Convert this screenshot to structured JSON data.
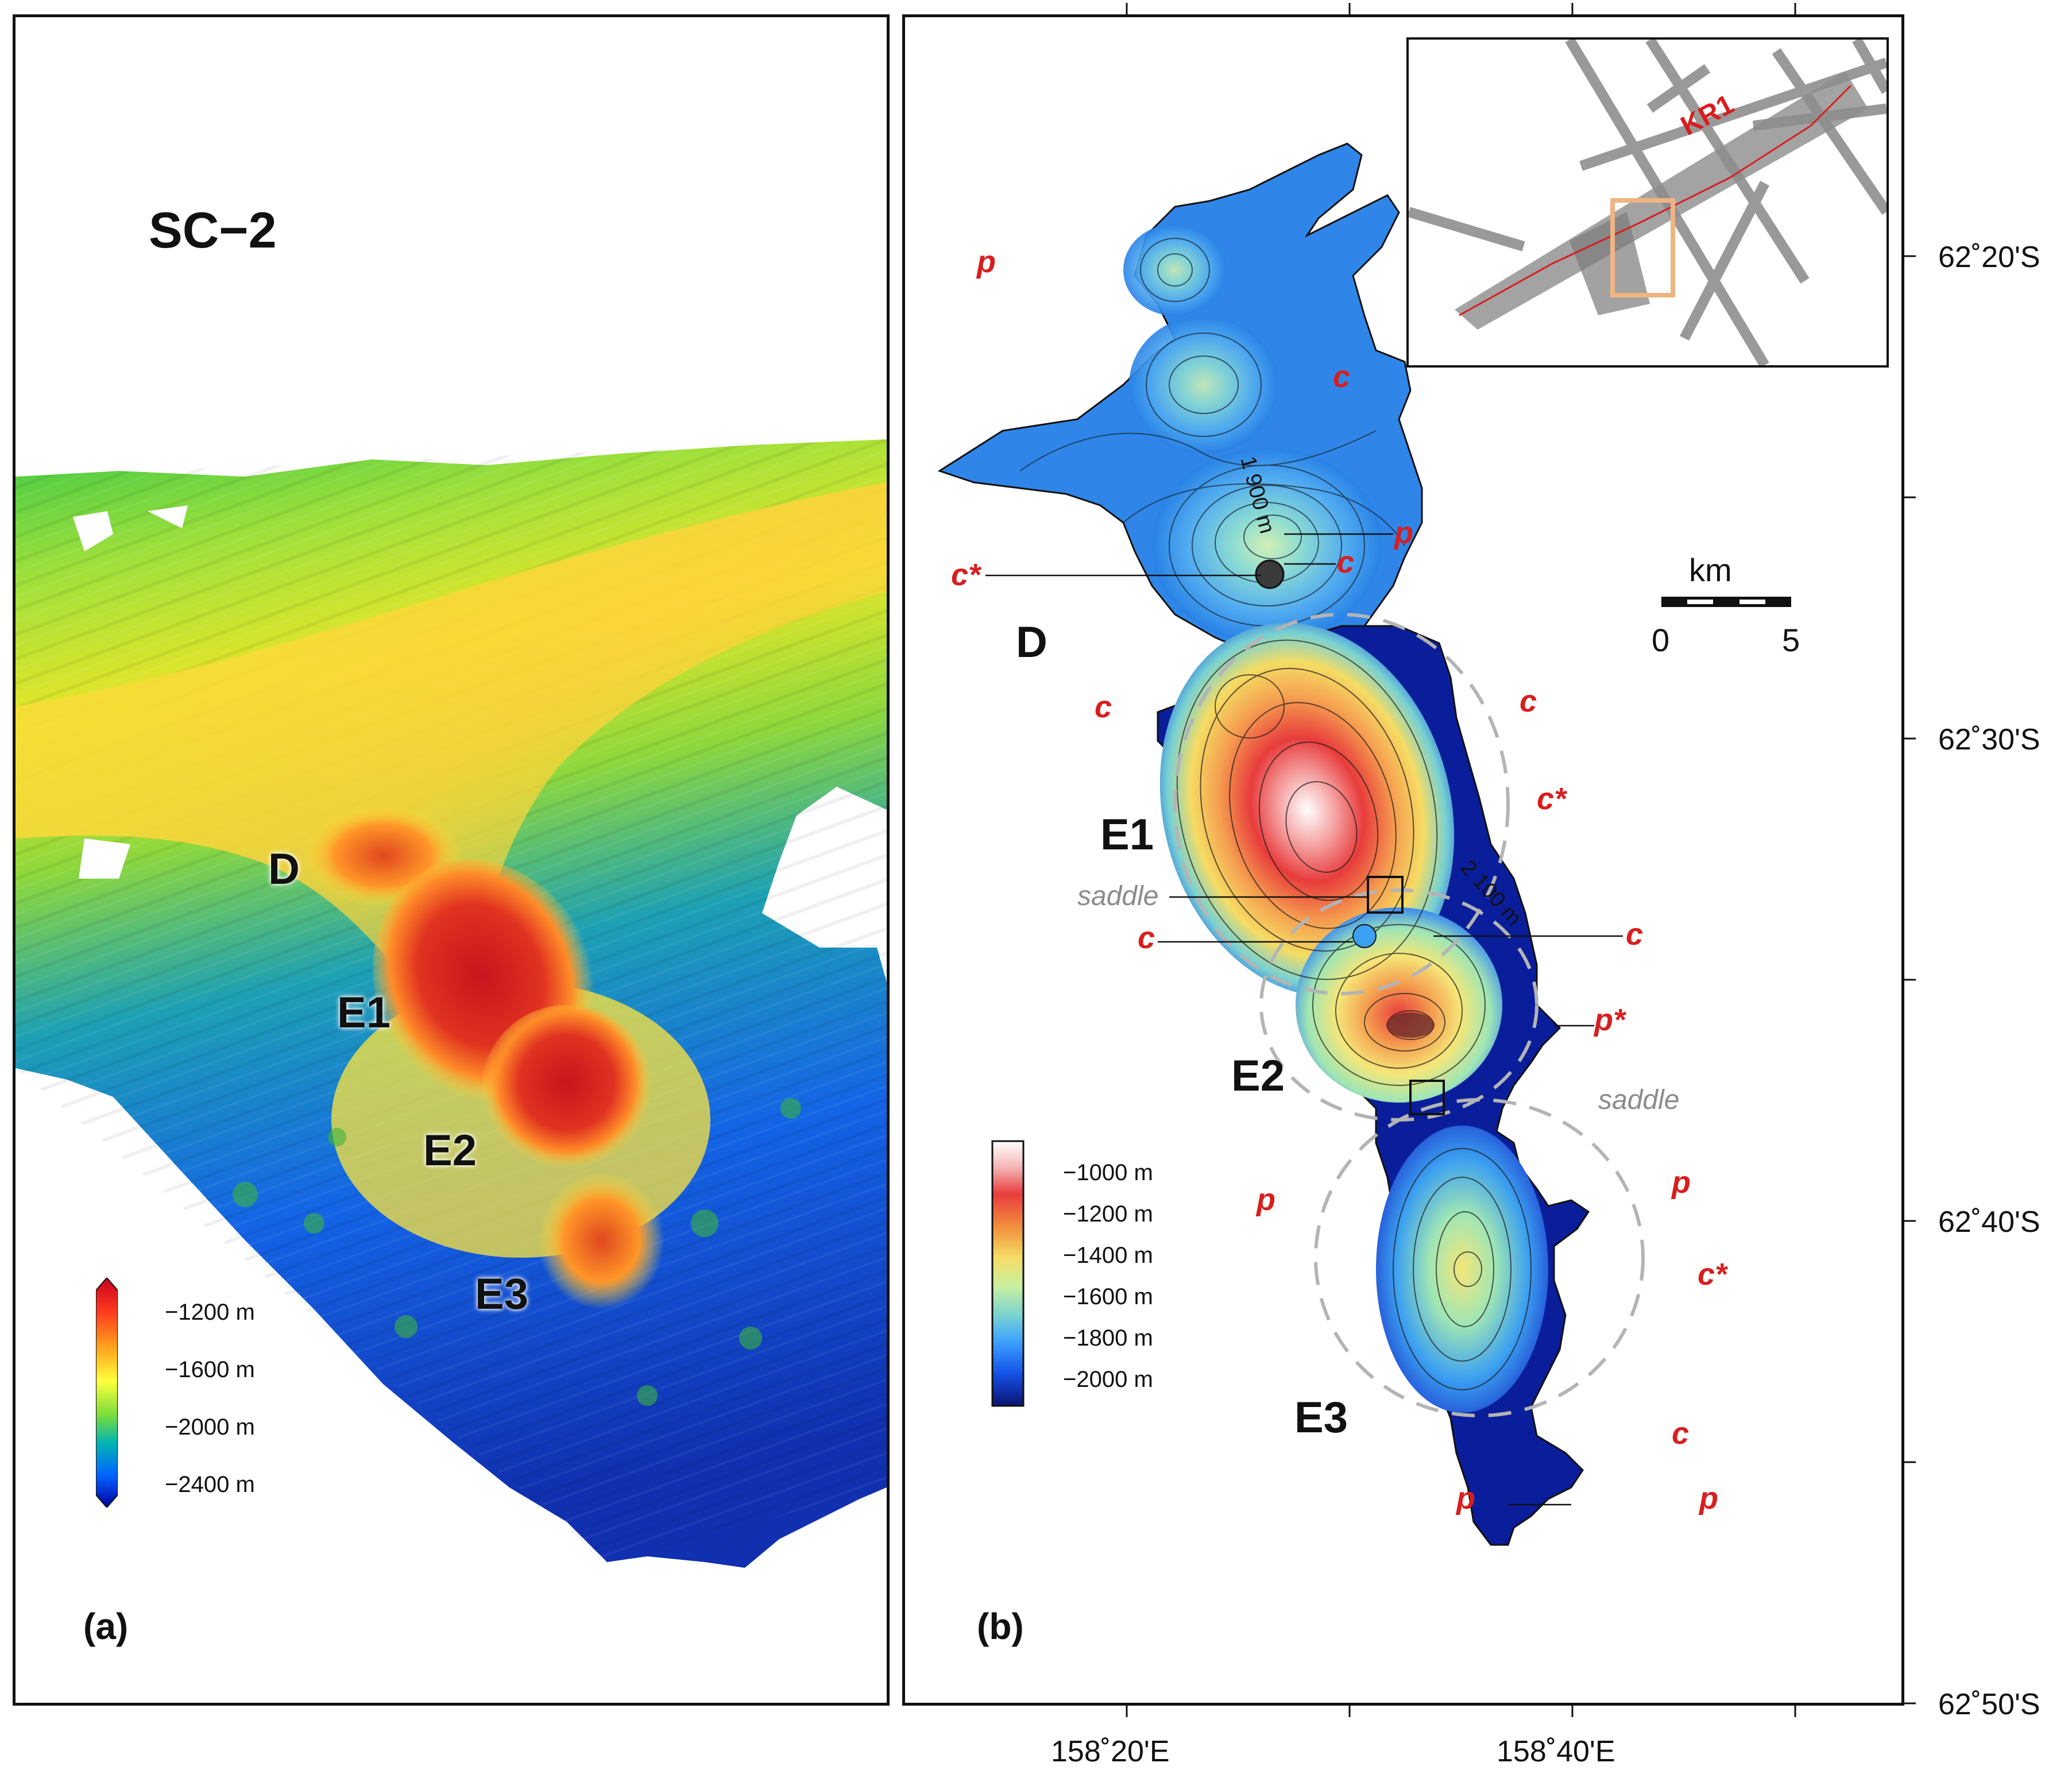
{
  "panel_a": {
    "title": "SC−2",
    "label": "(a)",
    "features": [
      "D",
      "E1",
      "E2",
      "E3"
    ],
    "colorbar": {
      "ticks": [
        "−1200 m",
        "−1600 m",
        "−2000 m",
        "−2400 m"
      ],
      "colors": [
        "#c8001e",
        "#ff5a1e",
        "#ffb400",
        "#ffff3c",
        "#78dc3c",
        "#00b4b4",
        "#0064ff",
        "#0000a0"
      ]
    }
  },
  "panel_b": {
    "label": "(b)",
    "features": {
      "D": "D",
      "E1": "E1",
      "E2": "E2",
      "E3": "E3"
    },
    "annotations": {
      "p_top": "p",
      "c_upper_right": "c",
      "p_d1": "p",
      "c_d1": "c",
      "cstar_d": "c*",
      "c_left_e1": "c",
      "c_right_e1": "c",
      "cstar_right_e1": "c*",
      "c_left_saddle": "c",
      "c_right_saddle": "c",
      "pstar_e2": "p*",
      "p_left_e3": "p",
      "p_right_e3": "p",
      "cstar_right_e3": "c*",
      "c_right_low": "c",
      "p_bottom_left": "p",
      "p_bottom_right": "p"
    },
    "saddle_labels": [
      "saddle",
      "saddle"
    ],
    "contour_notes": [
      "1 900 m",
      "2 100 m"
    ],
    "scalebar": {
      "unit": "km",
      "ticks": [
        "0",
        "5"
      ]
    },
    "colorbar": {
      "ticks": [
        "−1000 m",
        "−1200 m",
        "−1400 m",
        "−1600 m",
        "−1800 m",
        "−2000 m"
      ],
      "colors": [
        "#ffffff",
        "#f5a0a0",
        "#e83c3c",
        "#f5a050",
        "#f5dc64",
        "#c8f0a0",
        "#78d2d2",
        "#3ca0ff",
        "#1450e6",
        "#0a1e9b"
      ]
    },
    "lat_ticks": [
      "62˚20'S",
      "62˚30'S",
      "62˚40'S",
      "62˚50'S"
    ],
    "lon_ticks": [
      "158˚20'E",
      "158˚40'E"
    ],
    "inset": {
      "label": "KR1"
    }
  }
}
